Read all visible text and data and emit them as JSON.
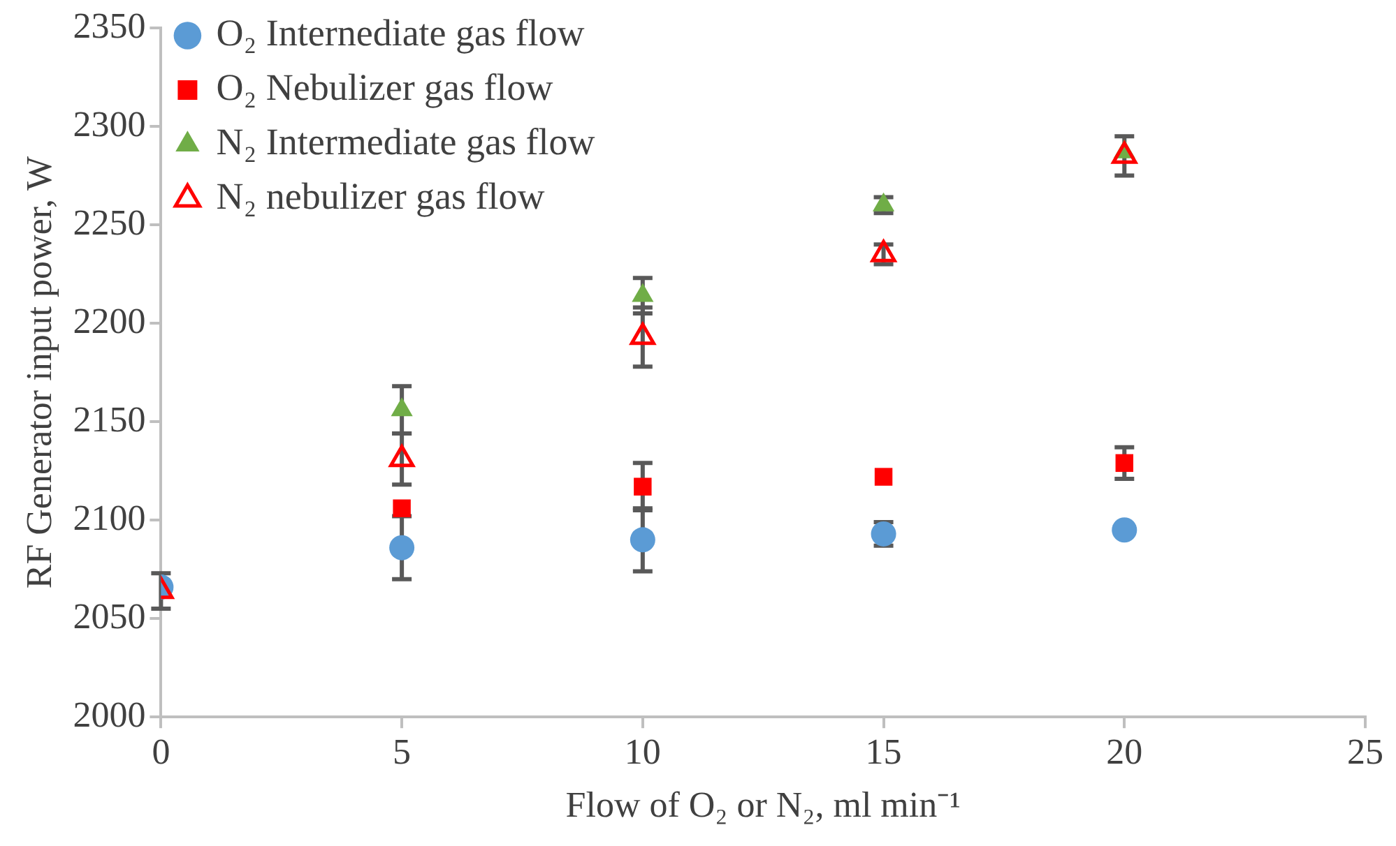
{
  "chart_data": {
    "type": "scatter",
    "xlabel": "Flow of O₂ or N₂, ml min⁻¹",
    "ylabel": "RF Generator input power, W",
    "xlim": [
      0,
      25
    ],
    "xticks": [
      0,
      5,
      10,
      15,
      20,
      25
    ],
    "ylim": [
      2000,
      2350
    ],
    "yticks": [
      2000,
      2050,
      2100,
      2150,
      2200,
      2250,
      2300,
      2350
    ],
    "grid": false,
    "legend": "top left",
    "series": [
      {
        "name": "O₂ Internediate gas flow",
        "color": "#5b9bd5",
        "marker": "circle",
        "x": [
          0,
          5,
          10,
          15,
          20
        ],
        "values": [
          2066,
          2086,
          2090,
          2093,
          2095
        ],
        "errors": [
          null,
          16,
          16,
          6,
          null
        ]
      },
      {
        "name": "O₂ Nebulizer gas flow",
        "color": "#ff0000",
        "marker": "square",
        "x": [
          5,
          10,
          15,
          20
        ],
        "values": [
          2106,
          2117,
          2122,
          2129
        ],
        "errors": [
          null,
          12,
          null,
          8
        ]
      },
      {
        "name": "N₂ Intermediate gas flow",
        "color": "#70ad47",
        "marker": "triangle",
        "x": [
          5,
          10,
          15,
          20
        ],
        "values": [
          2156,
          2214,
          2260,
          2287
        ],
        "errors": [
          12,
          9,
          4,
          null
        ]
      },
      {
        "name": "N₂ nebulizer gas flow",
        "color": "#ff0000",
        "marker": "triangle-open",
        "x": [
          0,
          5,
          10,
          15,
          20
        ],
        "values": [
          2064,
          2131,
          2193,
          2235,
          2285
        ],
        "errors": [
          9,
          13,
          15,
          5,
          10
        ]
      }
    ]
  }
}
